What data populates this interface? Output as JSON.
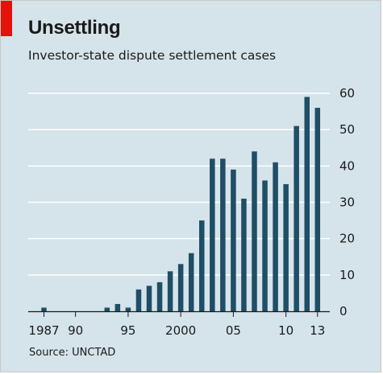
{
  "title": "Unsettling",
  "subtitle": "Investor-state dispute settlement cases",
  "source": "Source: UNCTAD",
  "colors": {
    "background": "#d5e3ea",
    "bar": "#1f4e66",
    "accent": "#e3120b",
    "grid": "#ffffff"
  },
  "chart_data": {
    "type": "bar",
    "title": "Unsettling",
    "subtitle": "Investor-state dispute settlement cases",
    "xlabel": "",
    "ylabel": "",
    "categories": [
      "1987",
      "1988",
      "1989",
      "1990",
      "1991",
      "1992",
      "1993",
      "1994",
      "1995",
      "1996",
      "1997",
      "1998",
      "1999",
      "2000",
      "2001",
      "2002",
      "2003",
      "2004",
      "2005",
      "2006",
      "2007",
      "2008",
      "2009",
      "2010",
      "2011",
      "2012",
      "2013"
    ],
    "values": [
      1,
      0,
      0,
      0,
      0,
      0,
      1,
      2,
      1,
      6,
      7,
      8,
      11,
      13,
      16,
      25,
      42,
      42,
      39,
      31,
      44,
      36,
      41,
      35,
      51,
      59,
      56
    ],
    "ylim": [
      0,
      60
    ],
    "yticks": [
      "0",
      "10",
      "20",
      "30",
      "40",
      "50",
      "60"
    ],
    "xtick_labels": [
      {
        "index": 0,
        "label": "1987"
      },
      {
        "index": 3,
        "label": "90"
      },
      {
        "index": 8,
        "label": "95"
      },
      {
        "index": 13,
        "label": "2000"
      },
      {
        "index": 18,
        "label": "05"
      },
      {
        "index": 23,
        "label": "10"
      },
      {
        "index": 26,
        "label": "13"
      }
    ],
    "y_axis_side": "right",
    "grid": true
  }
}
